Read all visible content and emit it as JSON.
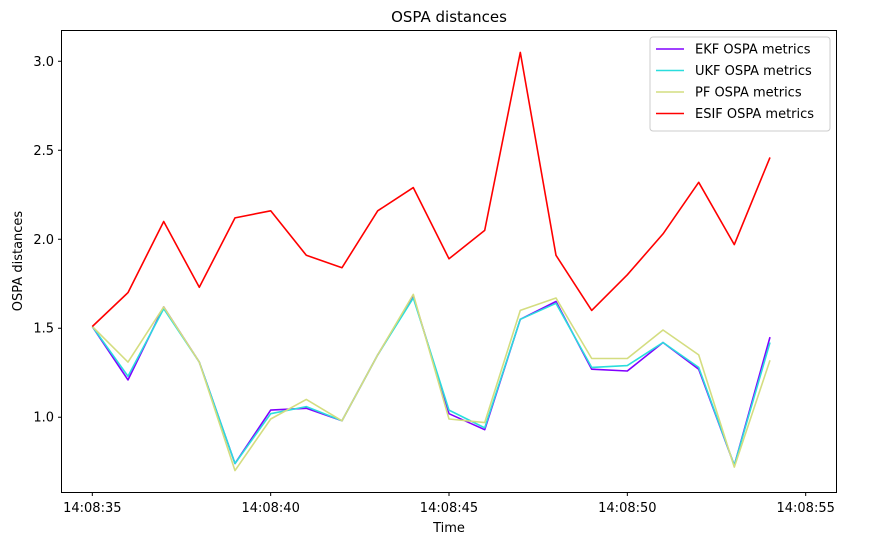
{
  "chart_data": {
    "type": "line",
    "title": "OSPA distances",
    "xlabel": "Time",
    "ylabel": "OSPA distances",
    "x": [
      "14:08:35",
      "14:08:36",
      "14:08:37",
      "14:08:38",
      "14:08:39",
      "14:08:40",
      "14:08:41",
      "14:08:42",
      "14:08:43",
      "14:08:44",
      "14:08:45",
      "14:08:46",
      "14:08:47",
      "14:08:48",
      "14:08:49",
      "14:08:50",
      "14:08:51",
      "14:08:52",
      "14:08:53",
      "14:08:54"
    ],
    "x_ticks": [
      "14:08:35",
      "14:08:40",
      "14:08:45",
      "14:08:50",
      "14:08:55"
    ],
    "xlim": [
      "14:08:34.15",
      "14:08:55.85"
    ],
    "ylim": [
      0.58,
      3.17
    ],
    "y_ticks": [
      "1.0",
      "1.5",
      "2.0",
      "2.5",
      "3.0"
    ],
    "grid": false,
    "legend_position": "top-right",
    "series": [
      {
        "name": "EKF OSPA metrics",
        "color": "#8000ff",
        "values": [
          1.51,
          1.21,
          1.62,
          1.31,
          0.74,
          1.04,
          1.05,
          0.98,
          1.35,
          1.68,
          1.02,
          0.93,
          1.55,
          1.65,
          1.27,
          1.26,
          1.42,
          1.27,
          0.73,
          1.45
        ]
      },
      {
        "name": "UKF OSPA metrics",
        "color": "#2adddd",
        "values": [
          1.51,
          1.23,
          1.61,
          1.31,
          0.74,
          1.02,
          1.06,
          0.98,
          1.35,
          1.67,
          1.04,
          0.94,
          1.55,
          1.64,
          1.28,
          1.29,
          1.42,
          1.28,
          0.73,
          1.42
        ]
      },
      {
        "name": "PF OSPA metrics",
        "color": "#d4dd80",
        "values": [
          1.51,
          1.31,
          1.62,
          1.31,
          0.7,
          0.99,
          1.1,
          0.98,
          1.35,
          1.69,
          0.99,
          0.97,
          1.6,
          1.67,
          1.33,
          1.33,
          1.49,
          1.35,
          0.72,
          1.32
        ]
      },
      {
        "name": "ESIF OSPA metrics",
        "color": "#ff0000",
        "values": [
          1.51,
          1.7,
          2.1,
          1.73,
          2.12,
          2.16,
          1.91,
          1.84,
          2.16,
          2.29,
          1.89,
          2.05,
          3.05,
          1.91,
          1.6,
          1.8,
          2.03,
          2.32,
          1.97,
          2.46
        ]
      }
    ]
  }
}
